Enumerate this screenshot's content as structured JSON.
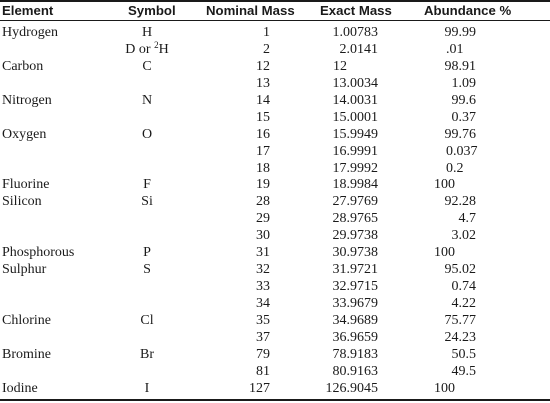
{
  "headers": {
    "element": "Element",
    "symbol": "Symbol",
    "nominal": "Nominal Mass",
    "exact": "Exact Mass",
    "abundance": "Abundance %"
  },
  "rows": [
    {
      "element": "Hydrogen",
      "symbol": "H",
      "nominal": "1",
      "exact": "1.00783",
      "abundance": "99.99"
    },
    {
      "element": "",
      "symbol_pre": "D or ",
      "symbol_sup": "2",
      "symbol_post": "H",
      "nominal": "2",
      "exact": "2.0141",
      "abundance": ".01"
    },
    {
      "element": "Carbon",
      "symbol": "C",
      "nominal": "12",
      "exact": "12",
      "abundance": "98.91"
    },
    {
      "element": "",
      "symbol": "",
      "nominal": "13",
      "exact": "13.0034",
      "abundance": "1.09"
    },
    {
      "element": "Nitrogen",
      "symbol": "N",
      "nominal": "14",
      "exact": "14.0031",
      "abundance": "99.6"
    },
    {
      "element": "",
      "symbol": "",
      "nominal": "15",
      "exact": "15.0001",
      "abundance": "0.37"
    },
    {
      "element": "Oxygen",
      "symbol": "O",
      "nominal": "16",
      "exact": "15.9949",
      "abundance": "99.76"
    },
    {
      "element": "",
      "symbol": "",
      "nominal": "17",
      "exact": "16.9991",
      "abundance": "0.037"
    },
    {
      "element": "",
      "symbol": "",
      "nominal": "18",
      "exact": "17.9992",
      "abundance": "0.2"
    },
    {
      "element": "Fluorine",
      "symbol": "F",
      "nominal": "19",
      "exact": "18.9984",
      "abundance": "100"
    },
    {
      "element": "Silicon",
      "symbol": "Si",
      "nominal": "28",
      "exact": "27.9769",
      "abundance": "92.28"
    },
    {
      "element": "",
      "symbol": "",
      "nominal": "29",
      "exact": "28.9765",
      "abundance": "4.7"
    },
    {
      "element": "",
      "symbol": "",
      "nominal": "30",
      "exact": "29.9738",
      "abundance": "3.02"
    },
    {
      "element": "Phosphorous",
      "symbol": "P",
      "nominal": "31",
      "exact": "30.9738",
      "abundance": "100"
    },
    {
      "element": "Sulphur",
      "symbol": "S",
      "nominal": "32",
      "exact": "31.9721",
      "abundance": "95.02"
    },
    {
      "element": "",
      "symbol": "",
      "nominal": "33",
      "exact": "32.9715",
      "abundance": "0.74"
    },
    {
      "element": "",
      "symbol": "",
      "nominal": "34",
      "exact": "33.9679",
      "abundance": "4.22"
    },
    {
      "element": "Chlorine",
      "symbol": "Cl",
      "nominal": "35",
      "exact": "34.9689",
      "abundance": "75.77"
    },
    {
      "element": "",
      "symbol": "",
      "nominal": "37",
      "exact": "36.9659",
      "abundance": "24.23"
    },
    {
      "element": "Bromine",
      "symbol": "Br",
      "nominal": "79",
      "exact": "78.9183",
      "abundance": "50.5"
    },
    {
      "element": "",
      "symbol": "",
      "nominal": "81",
      "exact": "80.9163",
      "abundance": "49.5"
    },
    {
      "element": "Iodine",
      "symbol": "I",
      "nominal": "127",
      "exact": "126.9045",
      "abundance": "100"
    }
  ]
}
